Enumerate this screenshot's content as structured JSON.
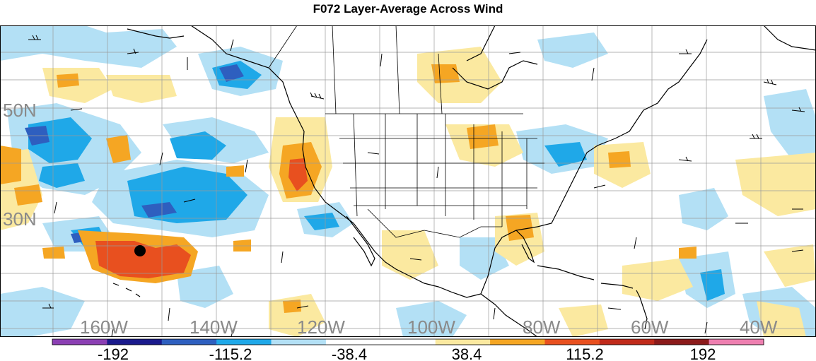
{
  "title": "F072 Layer-Average Across Wind",
  "map": {
    "lat_labels": [
      "50N",
      "30N"
    ],
    "lon_labels": [
      "160W",
      "140W",
      "120W",
      "100W",
      "80W",
      "60W",
      "40W"
    ],
    "marker": "storm-center-dot"
  },
  "colorbar": {
    "colors": [
      "#8b3fb3",
      "#1a1a8c",
      "#2e5fbf",
      "#1fa8e8",
      "#b3e0f5",
      "#ffffff",
      "#ffffff",
      "#fbe9a0",
      "#f5a623",
      "#e8501f",
      "#c02a1a",
      "#8b1a1a",
      "#ee7fb0"
    ],
    "tick_labels": [
      "-192",
      "-115.2",
      "-38.4",
      "38.4",
      "115.2",
      "192"
    ]
  },
  "chart_data": {
    "type": "heatmap",
    "title": "F072 Layer-Average Across Wind",
    "x_tick_labels": [
      "160W",
      "140W",
      "120W",
      "100W",
      "80W",
      "60W",
      "40W"
    ],
    "y_tick_labels": [
      "50N",
      "30N"
    ],
    "levels": [
      -192,
      -153.6,
      -115.2,
      -76.8,
      -38.4,
      0,
      38.4,
      76.8,
      115.2,
      153.6,
      192
    ],
    "colorbar_labels": [
      "-192",
      "-115.2",
      "-38.4",
      "38.4",
      "115.2",
      "192"
    ],
    "features": [
      "wind barbs",
      "shaded across-wind field",
      "black marker near 25N 155W"
    ]
  }
}
